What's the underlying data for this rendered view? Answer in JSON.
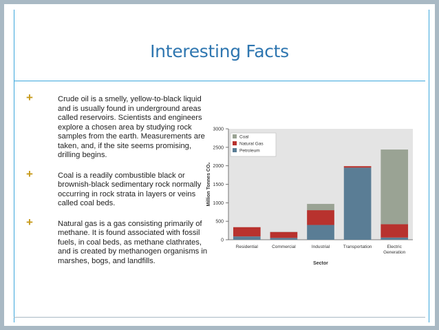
{
  "slide": {
    "title": "Interesting Facts",
    "bullets": [
      "Crude oil is a smelly, yellow-to-black liquid and is usually found in underground areas called reservoirs. Scientists and engineers explore a chosen area by studying rock samples from the earth. Measurements are taken, and, if the site seems promising, drilling begins.",
      "Coal is a readily combustible black or brownish-black sedimentary rock normally occurring in rock strata in layers or veins called coal beds.",
      "Natural gas is a gas consisting primarily of methane. It is found associated with fossil fuels, in coal beds, as methane clathrates, and is created by methanogen organisms in marshes, bogs, and landfills."
    ],
    "bullet_icon": "plus-icon",
    "colors": {
      "title": "#2e76b0",
      "accent": "#3ca6dc",
      "bullet": "#c79a1a"
    }
  },
  "chart_data": {
    "type": "bar",
    "stacked": true,
    "categories": [
      "Residential",
      "Commercial",
      "Industrial",
      "Transportation",
      "Electric\nGeneration"
    ],
    "series": [
      {
        "name": "Petroleum",
        "color": "#5a7d95",
        "values": [
          90,
          50,
          400,
          1950,
          60
        ]
      },
      {
        "name": "Natural Gas",
        "color": "#b8322e",
        "values": [
          250,
          160,
          400,
          40,
          360
        ]
      },
      {
        "name": "Coal",
        "color": "#9aa394",
        "values": [
          0,
          5,
          170,
          0,
          2020
        ]
      }
    ],
    "xlabel": "Sector",
    "ylabel": "Million Tonnes CO₂",
    "ylim": [
      0,
      3000
    ],
    "yticks": [
      0,
      500,
      1000,
      1500,
      2000,
      2500,
      3000
    ],
    "legend_order": [
      "Coal",
      "Natural Gas",
      "Petroleum"
    ],
    "legend_position": "top-left",
    "grid": false,
    "plot_background": "#e4e4e4"
  }
}
